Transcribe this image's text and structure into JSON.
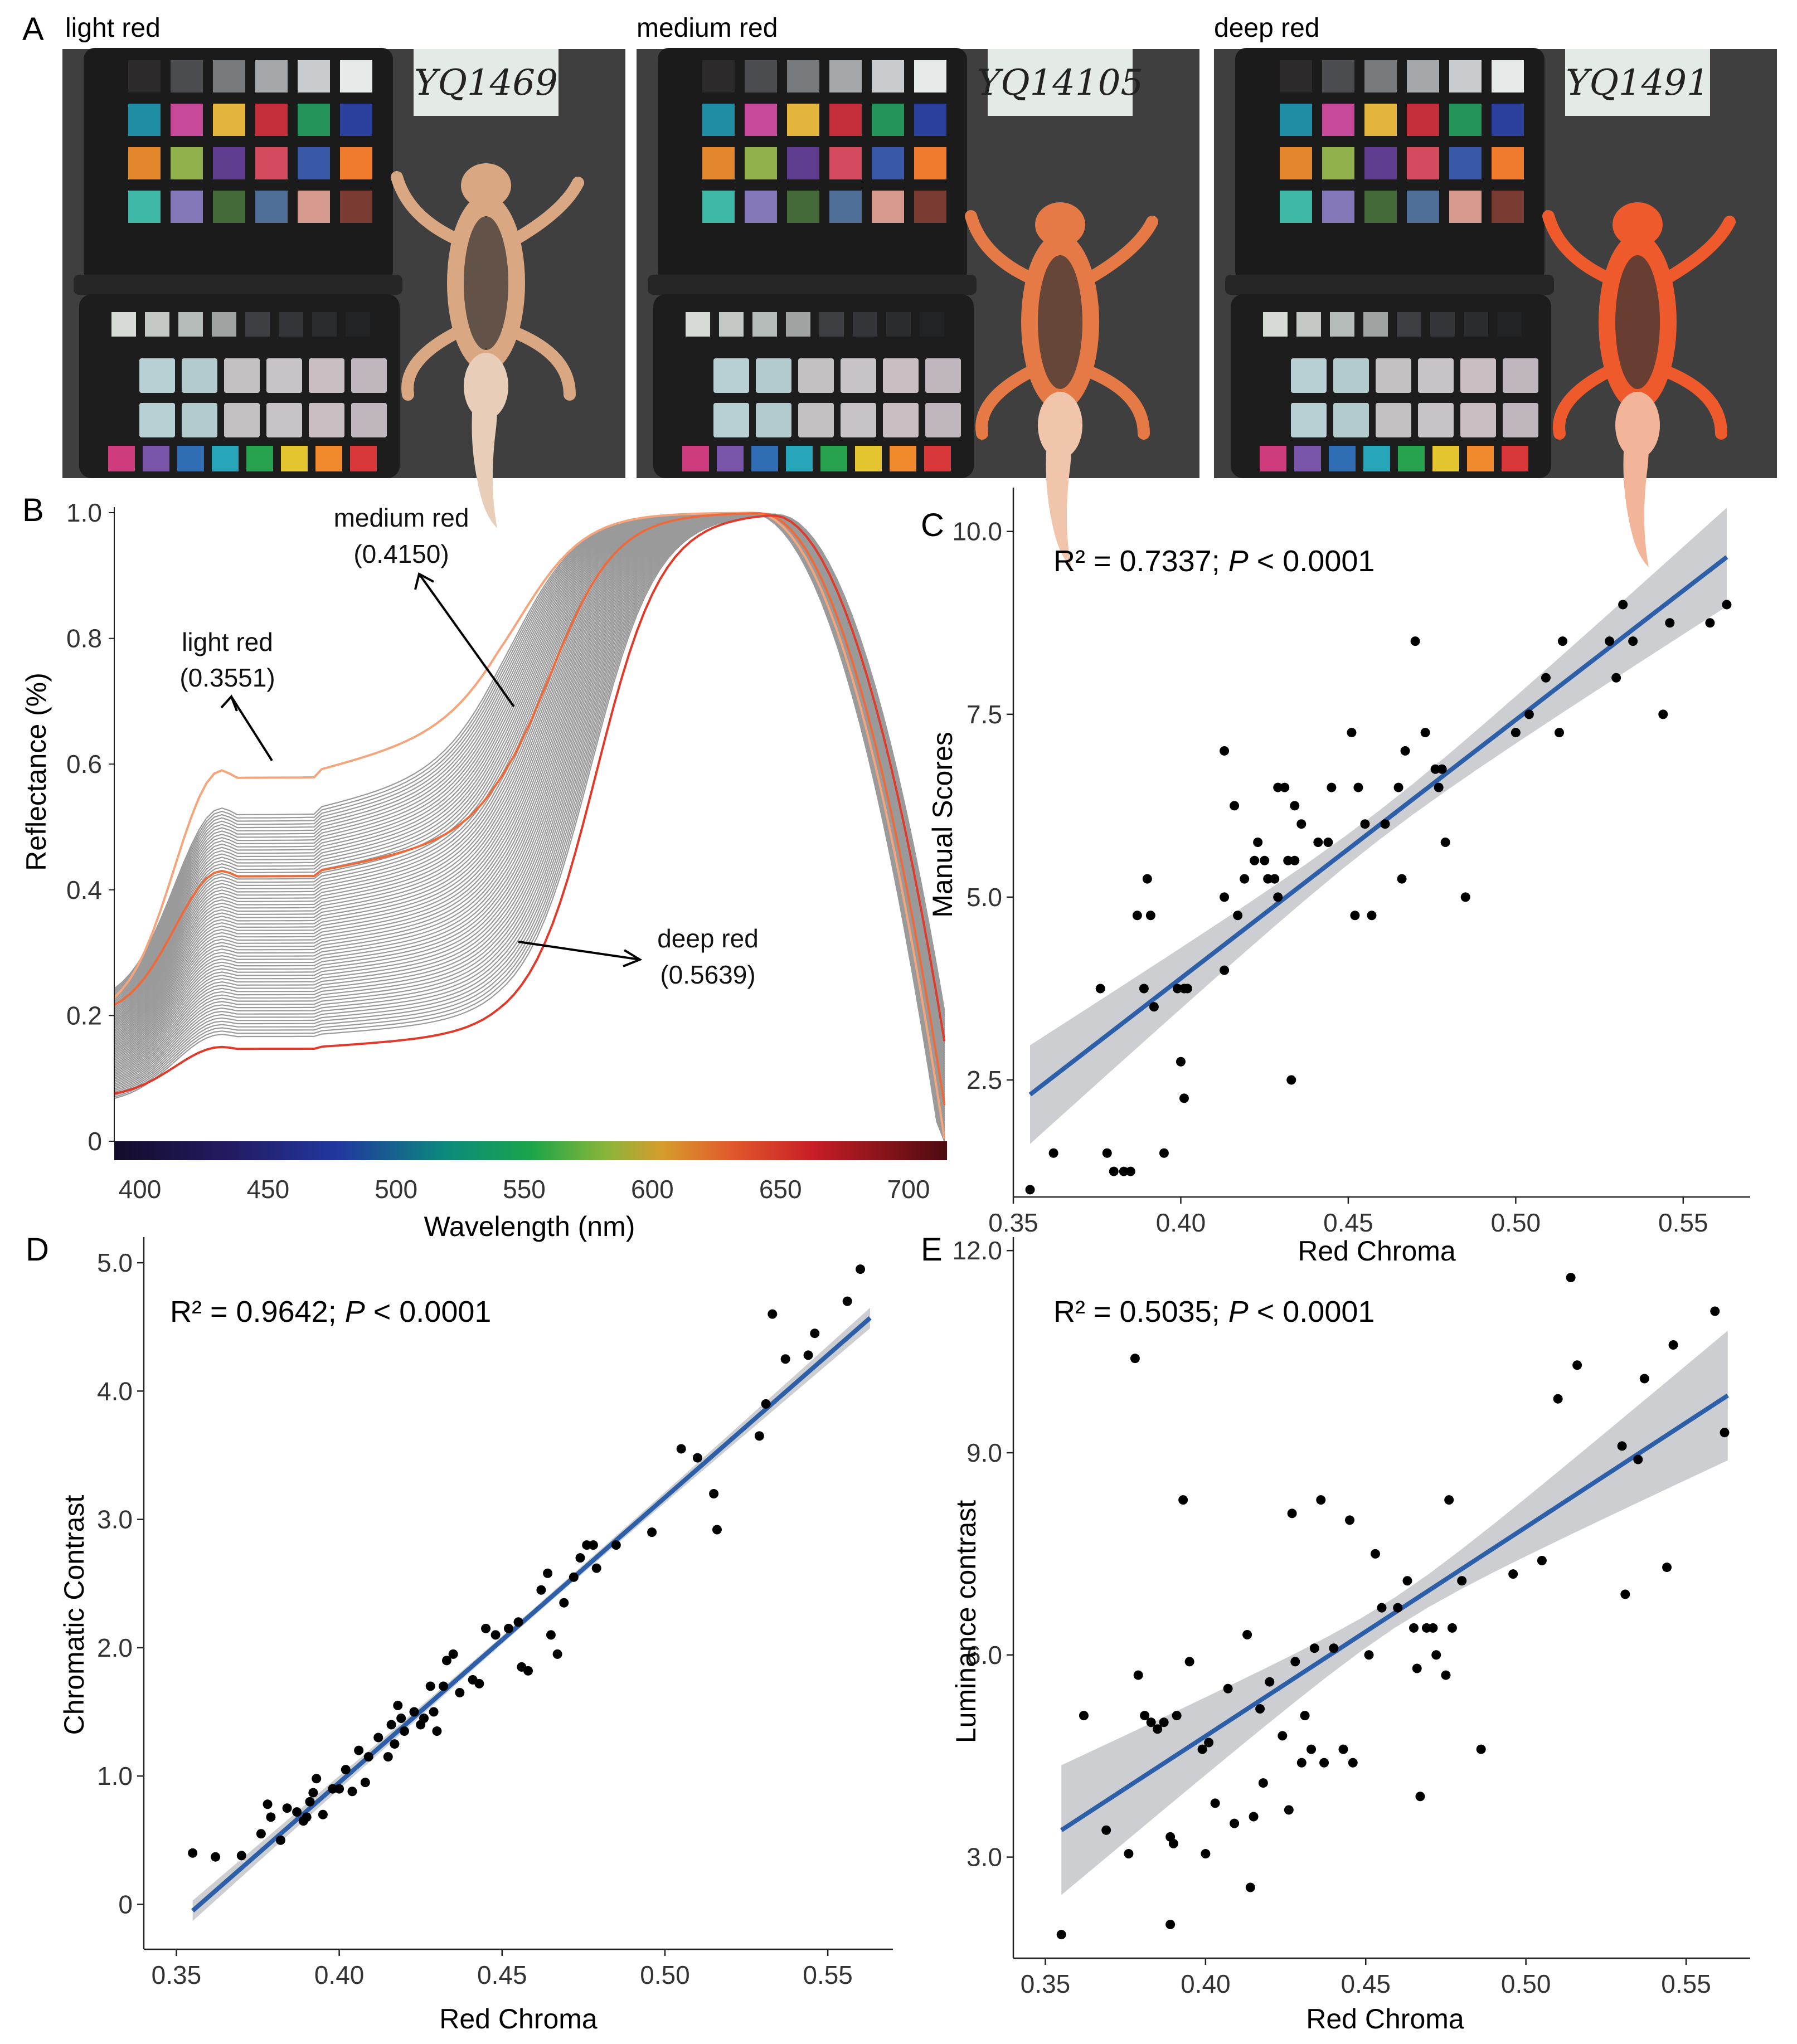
{
  "panel_letters": {
    "a": "A",
    "b": "B",
    "c": "C",
    "d": "D",
    "e": "E"
  },
  "photos": [
    {
      "label": "light red",
      "tag": "YQ1469",
      "body_color": "#d9a883",
      "belly_color": "#e8cdb8"
    },
    {
      "label": "medium red",
      "tag": "YQ14105",
      "body_color": "#e57a47",
      "belly_color": "#f0c5ac"
    },
    {
      "label": "deep red",
      "tag": "YQ1491",
      "body_color": "#ee5a2c",
      "belly_color": "#f2b59a"
    }
  ],
  "chart_data": [
    {
      "id": "B",
      "type": "line",
      "xlabel": "Wavelength (nm)",
      "ylabel": "Reflectance (%)",
      "xlim": [
        390,
        715
      ],
      "ylim": [
        0,
        1.0
      ],
      "x_ticks": [
        "400",
        "450",
        "500",
        "550",
        "600",
        "650",
        "700"
      ],
      "y_ticks": [
        "0",
        "0.2",
        "0.4",
        "0.6",
        "0.8",
        "1.0"
      ],
      "annotations": [
        {
          "name": "light red",
          "value": "(0.3551)"
        },
        {
          "name": "medium red",
          "value": "(0.4150)"
        },
        {
          "name": "deep red",
          "value": "(0.5639)"
        }
      ],
      "highlight_series": [
        {
          "name": "light red",
          "color": "#f4a57c",
          "plateau": 0.59,
          "base": 0.2,
          "rise_center": 548,
          "peak": 640
        },
        {
          "name": "medium red",
          "color": "#ee6a3a",
          "plateau": 0.43,
          "base": 0.2,
          "rise_center": 560,
          "peak": 642
        },
        {
          "name": "deep red",
          "color": "#e03a2a",
          "plateau": 0.15,
          "base": 0.07,
          "rise_center": 578,
          "peak": 646
        }
      ],
      "gray_series_count": 70,
      "gray_plateau_range": [
        0.17,
        0.53
      ],
      "colorbar": "visible spectrum 390-715 nm"
    },
    {
      "id": "C",
      "type": "scatter",
      "xlabel": "Red Chroma",
      "ylabel": "Manual Scores",
      "xlim": [
        0.35,
        0.57
      ],
      "ylim": [
        0.9,
        10.6
      ],
      "x_ticks": [
        "0.35",
        "0.40",
        "0.45",
        "0.50",
        "0.55"
      ],
      "y_ticks": [
        "2.5",
        "5.0",
        "7.5",
        "10.0"
      ],
      "stat": "R² = 0.7337; P < 0.0001",
      "stat_parts": {
        "r2": "R²",
        "r2_value": " = 0.7337; ",
        "p": "P",
        "p_value": " < 0.0001"
      },
      "fit": {
        "x": [
          0.355,
          0.563
        ],
        "y": [
          2.3,
          9.65
        ],
        "band_low": [
          1.5,
          9.1
        ],
        "band_mid": [
          4.9,
          5.3
        ],
        "band_high": [
          3.1,
          10.2
        ]
      },
      "points": [
        [
          0.355,
          1.0
        ],
        [
          0.362,
          1.5
        ],
        [
          0.376,
          3.75
        ],
        [
          0.378,
          1.5
        ],
        [
          0.38,
          1.25
        ],
        [
          0.383,
          1.25
        ],
        [
          0.385,
          1.25
        ],
        [
          0.387,
          4.75
        ],
        [
          0.389,
          3.75
        ],
        [
          0.39,
          5.25
        ],
        [
          0.391,
          4.75
        ],
        [
          0.392,
          3.5
        ],
        [
          0.395,
          1.5
        ],
        [
          0.399,
          3.75
        ],
        [
          0.4,
          2.75
        ],
        [
          0.401,
          3.75
        ],
        [
          0.401,
          2.25
        ],
        [
          0.402,
          3.75
        ],
        [
          0.413,
          7.0
        ],
        [
          0.413,
          5.0
        ],
        [
          0.413,
          4.0
        ],
        [
          0.416,
          6.25
        ],
        [
          0.417,
          4.75
        ],
        [
          0.419,
          5.25
        ],
        [
          0.422,
          5.5
        ],
        [
          0.423,
          5.75
        ],
        [
          0.425,
          5.5
        ],
        [
          0.426,
          5.25
        ],
        [
          0.428,
          5.25
        ],
        [
          0.429,
          6.5
        ],
        [
          0.429,
          5.0
        ],
        [
          0.431,
          6.5
        ],
        [
          0.432,
          5.5
        ],
        [
          0.433,
          2.5
        ],
        [
          0.434,
          6.25
        ],
        [
          0.434,
          5.5
        ],
        [
          0.436,
          6.0
        ],
        [
          0.441,
          5.75
        ],
        [
          0.444,
          5.75
        ],
        [
          0.445,
          6.5
        ],
        [
          0.451,
          7.25
        ],
        [
          0.452,
          4.75
        ],
        [
          0.453,
          6.5
        ],
        [
          0.455,
          6.0
        ],
        [
          0.457,
          4.75
        ],
        [
          0.461,
          6.0
        ],
        [
          0.465,
          6.5
        ],
        [
          0.466,
          5.25
        ],
        [
          0.467,
          7.0
        ],
        [
          0.47,
          8.5
        ],
        [
          0.473,
          7.25
        ],
        [
          0.476,
          6.75
        ],
        [
          0.477,
          6.5
        ],
        [
          0.478,
          6.75
        ],
        [
          0.479,
          5.75
        ],
        [
          0.485,
          5.0
        ],
        [
          0.5,
          7.25
        ],
        [
          0.504,
          7.5
        ],
        [
          0.509,
          8.0
        ],
        [
          0.513,
          7.25
        ],
        [
          0.514,
          8.5
        ],
        [
          0.528,
          8.5
        ],
        [
          0.53,
          8.0
        ],
        [
          0.532,
          9.0
        ],
        [
          0.535,
          8.5
        ],
        [
          0.544,
          7.5
        ],
        [
          0.546,
          8.75
        ],
        [
          0.558,
          8.75
        ],
        [
          0.563,
          9.0
        ]
      ]
    },
    {
      "id": "D",
      "type": "scatter",
      "xlabel": "Red Chroma",
      "ylabel": "Chromatic Contrast",
      "xlim": [
        0.34,
        0.57
      ],
      "ylim": [
        -0.35,
        5.2
      ],
      "x_ticks": [
        "0.35",
        "0.40",
        "0.45",
        "0.50",
        "0.55"
      ],
      "y_ticks": [
        "0",
        "1.0",
        "2.0",
        "3.0",
        "4.0",
        "5.0"
      ],
      "stat": "R² = 0.9642; P < 0.0001",
      "stat_parts": {
        "r2": "R²",
        "r2_value": " = 0.9642; ",
        "p": "P",
        "p_value": " < 0.0001"
      },
      "fit": {
        "x": [
          0.355,
          0.563
        ],
        "y": [
          -0.05,
          4.57
        ],
        "band_low": [
          -0.12,
          4.5
        ],
        "band_mid": [
          2.2,
          2.26
        ],
        "band_high": [
          0.02,
          4.68
        ]
      },
      "points": [
        [
          0.355,
          0.4
        ],
        [
          0.362,
          0.37
        ],
        [
          0.37,
          0.38
        ],
        [
          0.376,
          0.55
        ],
        [
          0.378,
          0.78
        ],
        [
          0.379,
          0.68
        ],
        [
          0.382,
          0.5
        ],
        [
          0.384,
          0.75
        ],
        [
          0.387,
          0.72
        ],
        [
          0.389,
          0.65
        ],
        [
          0.39,
          0.68
        ],
        [
          0.391,
          0.8
        ],
        [
          0.392,
          0.87
        ],
        [
          0.393,
          0.98
        ],
        [
          0.395,
          0.7
        ],
        [
          0.398,
          0.9
        ],
        [
          0.4,
          0.9
        ],
        [
          0.402,
          1.05
        ],
        [
          0.404,
          0.88
        ],
        [
          0.406,
          1.2
        ],
        [
          0.408,
          0.95
        ],
        [
          0.409,
          1.15
        ],
        [
          0.412,
          1.3
        ],
        [
          0.415,
          1.15
        ],
        [
          0.416,
          1.4
        ],
        [
          0.417,
          1.25
        ],
        [
          0.418,
          1.55
        ],
        [
          0.419,
          1.45
        ],
        [
          0.42,
          1.35
        ],
        [
          0.423,
          1.5
        ],
        [
          0.425,
          1.4
        ],
        [
          0.426,
          1.45
        ],
        [
          0.428,
          1.7
        ],
        [
          0.429,
          1.5
        ],
        [
          0.43,
          1.35
        ],
        [
          0.432,
          1.7
        ],
        [
          0.433,
          1.9
        ],
        [
          0.435,
          1.95
        ],
        [
          0.437,
          1.65
        ],
        [
          0.441,
          1.75
        ],
        [
          0.443,
          1.72
        ],
        [
          0.445,
          2.15
        ],
        [
          0.448,
          2.1
        ],
        [
          0.452,
          2.15
        ],
        [
          0.455,
          2.2
        ],
        [
          0.456,
          1.85
        ],
        [
          0.458,
          1.82
        ],
        [
          0.462,
          2.45
        ],
        [
          0.464,
          2.58
        ],
        [
          0.465,
          2.1
        ],
        [
          0.467,
          1.95
        ],
        [
          0.469,
          2.35
        ],
        [
          0.472,
          2.55
        ],
        [
          0.474,
          2.7
        ],
        [
          0.476,
          2.8
        ],
        [
          0.478,
          2.8
        ],
        [
          0.479,
          2.62
        ],
        [
          0.485,
          2.8
        ],
        [
          0.496,
          2.9
        ],
        [
          0.505,
          3.55
        ],
        [
          0.51,
          3.48
        ],
        [
          0.515,
          3.2
        ],
        [
          0.516,
          2.92
        ],
        [
          0.529,
          3.65
        ],
        [
          0.531,
          3.9
        ],
        [
          0.533,
          4.6
        ],
        [
          0.537,
          4.25
        ],
        [
          0.544,
          4.28
        ],
        [
          0.546,
          4.45
        ],
        [
          0.556,
          4.7
        ],
        [
          0.56,
          4.95
        ]
      ]
    },
    {
      "id": "E",
      "type": "scatter",
      "xlabel": "Red Chroma",
      "ylabel": "Luminance contrast",
      "xlim": [
        0.34,
        0.57
      ],
      "ylim": [
        1.5,
        12.2
      ],
      "x_ticks": [
        "0.35",
        "0.40",
        "0.45",
        "0.50",
        "0.55"
      ],
      "y_ticks": [
        "3.0",
        "6.0",
        "9.0",
        "12.0"
      ],
      "stat": "R² = 0.5035; P < 0.0001",
      "stat_parts": {
        "r2": "R²",
        "r2_value": " = 0.5035; ",
        "p": "P",
        "p_value": " < 0.0001"
      },
      "fit": {
        "x": [
          0.355,
          0.563
        ],
        "y": [
          3.4,
          9.85
        ],
        "band_low": [
          2.45,
          8.85
        ],
        "band_mid": [
          6.1,
          6.55
        ],
        "band_high": [
          4.3,
          10.85
        ]
      },
      "points": [
        [
          0.355,
          1.85
        ],
        [
          0.362,
          5.1
        ],
        [
          0.369,
          3.4
        ],
        [
          0.376,
          3.05
        ],
        [
          0.378,
          10.4
        ],
        [
          0.379,
          5.7
        ],
        [
          0.381,
          5.1
        ],
        [
          0.383,
          5.0
        ],
        [
          0.385,
          4.9
        ],
        [
          0.387,
          5.0
        ],
        [
          0.389,
          3.3
        ],
        [
          0.389,
          2.0
        ],
        [
          0.39,
          3.2
        ],
        [
          0.391,
          5.1
        ],
        [
          0.393,
          8.3
        ],
        [
          0.395,
          5.9
        ],
        [
          0.399,
          4.6
        ],
        [
          0.4,
          3.05
        ],
        [
          0.401,
          4.7
        ],
        [
          0.403,
          3.8
        ],
        [
          0.407,
          5.5
        ],
        [
          0.409,
          3.5
        ],
        [
          0.413,
          6.3
        ],
        [
          0.414,
          2.55
        ],
        [
          0.415,
          3.6
        ],
        [
          0.417,
          5.2
        ],
        [
          0.418,
          4.1
        ],
        [
          0.42,
          5.6
        ],
        [
          0.424,
          4.8
        ],
        [
          0.426,
          3.7
        ],
        [
          0.427,
          8.1
        ],
        [
          0.428,
          5.9
        ],
        [
          0.43,
          4.4
        ],
        [
          0.431,
          5.1
        ],
        [
          0.433,
          4.6
        ],
        [
          0.434,
          6.1
        ],
        [
          0.436,
          8.3
        ],
        [
          0.437,
          4.4
        ],
        [
          0.44,
          6.1
        ],
        [
          0.443,
          4.6
        ],
        [
          0.445,
          8.0
        ],
        [
          0.446,
          4.4
        ],
        [
          0.451,
          6.0
        ],
        [
          0.453,
          7.5
        ],
        [
          0.455,
          6.7
        ],
        [
          0.46,
          6.7
        ],
        [
          0.463,
          7.1
        ],
        [
          0.465,
          6.4
        ],
        [
          0.466,
          5.8
        ],
        [
          0.467,
          3.9
        ],
        [
          0.469,
          6.4
        ],
        [
          0.471,
          6.4
        ],
        [
          0.472,
          6.0
        ],
        [
          0.475,
          5.7
        ],
        [
          0.476,
          8.3
        ],
        [
          0.477,
          6.4
        ],
        [
          0.48,
          7.1
        ],
        [
          0.486,
          4.6
        ],
        [
          0.496,
          7.2
        ],
        [
          0.505,
          7.4
        ],
        [
          0.51,
          9.8
        ],
        [
          0.514,
          11.6
        ],
        [
          0.516,
          10.3
        ],
        [
          0.53,
          9.1
        ],
        [
          0.531,
          6.9
        ],
        [
          0.535,
          8.9
        ],
        [
          0.537,
          10.1
        ],
        [
          0.544,
          7.3
        ],
        [
          0.546,
          10.6
        ],
        [
          0.559,
          11.1
        ],
        [
          0.562,
          9.3
        ]
      ]
    }
  ]
}
